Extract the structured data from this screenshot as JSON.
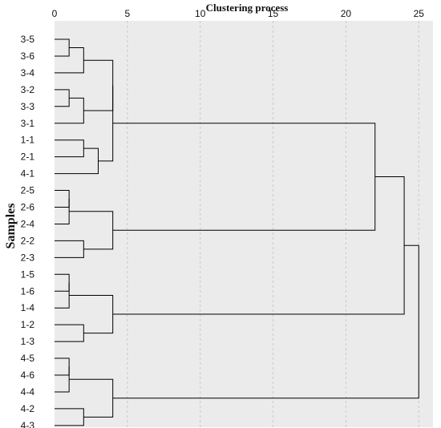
{
  "chart_data": {
    "type": "dendrogram",
    "title": "",
    "xlabel": "Clustering process",
    "ylabel": "Samples",
    "xlim": [
      0,
      26.5
    ],
    "x_ticks": [
      "0",
      "5",
      "10",
      "15",
      "20",
      "25"
    ],
    "x_tick_values": [
      0,
      5,
      10,
      15,
      20,
      25
    ],
    "grid": "vertical dashed",
    "colors": {
      "background": "#ebebeb",
      "lines": "#000000",
      "grid": "#c8c8c8"
    },
    "leaves": [
      "3-5",
      "3-6",
      "3-4",
      "3-2",
      "3-3",
      "3-1",
      "1-1",
      "2-1",
      "4-1",
      "2-5",
      "2-6",
      "2-4",
      "2-2",
      "2-3",
      "1-5",
      "1-6",
      "1-4",
      "1-2",
      "1-3",
      "4-5",
      "4-6",
      "4-4",
      "4-2",
      "4-3"
    ],
    "merges": [
      {
        "left": "3-5",
        "right": "3-6",
        "height": 1
      },
      {
        "left": "3-2",
        "right": "3-3",
        "height": 1
      },
      {
        "left": "3-2|3-3",
        "right": "3-1",
        "height": 2
      },
      {
        "left": "3-5|3-6",
        "right": "3-4",
        "height": 2
      },
      {
        "left": "1-1",
        "right": "2-1",
        "height": 2
      },
      {
        "left": "1-1|2-1",
        "right": "4-1",
        "height": 3
      },
      {
        "left": "3-5|3-6|3-4",
        "right": "3-2|3-3|3-1",
        "height": 4
      },
      {
        "left": "3-group",
        "right": "1-1|2-1|4-1",
        "height": 4
      },
      {
        "left": "2-5",
        "right": "2-6",
        "height": 1
      },
      {
        "left": "2-5|2-6",
        "right": "2-4",
        "height": 1
      },
      {
        "left": "2-2",
        "right": "2-3",
        "height": 2
      },
      {
        "left": "2-5|2-6|2-4",
        "right": "2-2|2-3",
        "height": 4
      },
      {
        "left": "cluster-A",
        "right": "cluster-B",
        "height": 22
      },
      {
        "left": "1-5",
        "right": "1-6",
        "height": 1
      },
      {
        "left": "1-5|1-6",
        "right": "1-4",
        "height": 1
      },
      {
        "left": "1-2",
        "right": "1-3",
        "height": 2
      },
      {
        "left": "1-5|1-6|1-4",
        "right": "1-2|1-3",
        "height": 4
      },
      {
        "left": "cluster-AB",
        "right": "cluster-C",
        "height": 24
      },
      {
        "left": "4-5",
        "right": "4-6",
        "height": 1
      },
      {
        "left": "4-5|4-6",
        "right": "4-4",
        "height": 1
      },
      {
        "left": "4-2",
        "right": "4-3",
        "height": 2
      },
      {
        "left": "4-5|4-6|4-4",
        "right": "4-2|4-3",
        "height": 4
      },
      {
        "left": "cluster-ABC",
        "right": "cluster-D",
        "height": 25
      }
    ]
  }
}
